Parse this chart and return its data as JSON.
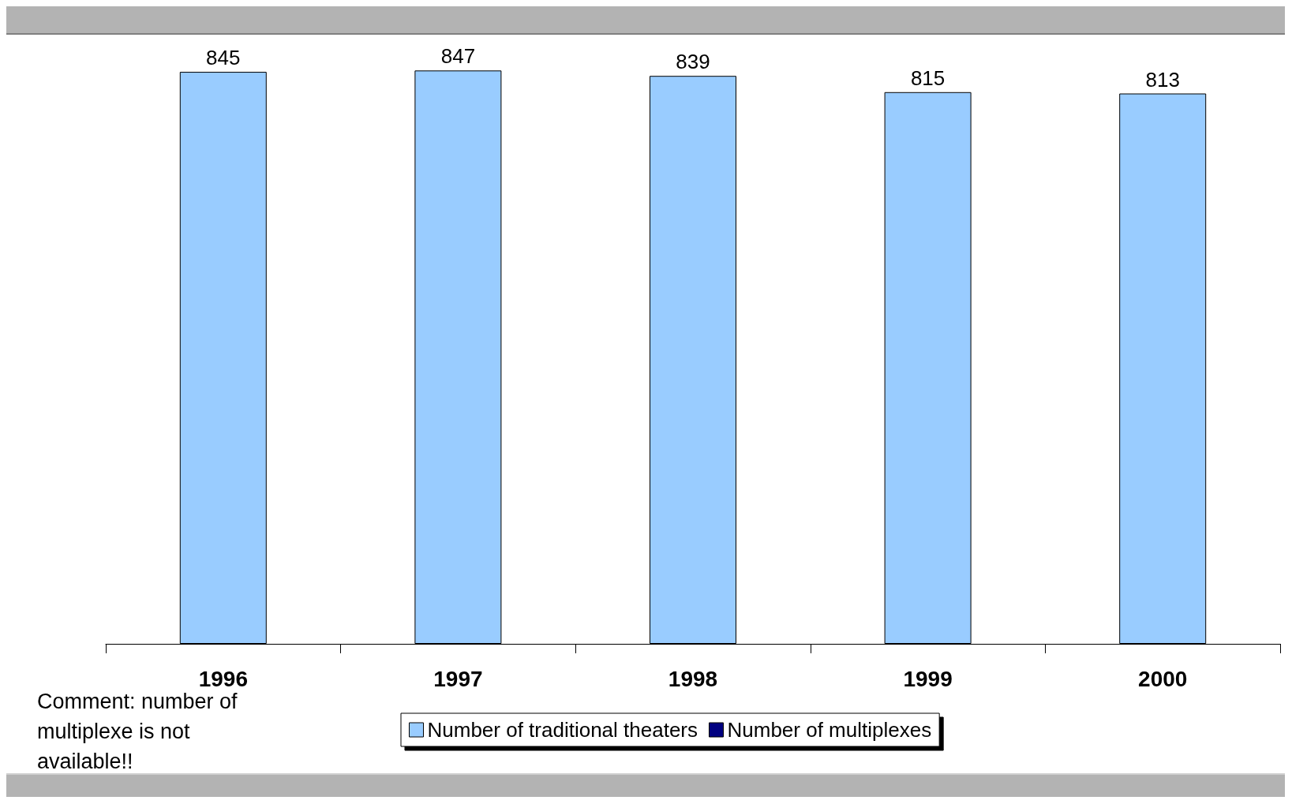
{
  "chart_data": {
    "type": "bar",
    "categories": [
      "1996",
      "1997",
      "1998",
      "1999",
      "2000"
    ],
    "series": [
      {
        "name": "Number of traditional theaters",
        "color": "#99ccff",
        "values": [
          845,
          847,
          839,
          815,
          813
        ]
      },
      {
        "name": "Number of multiplexes",
        "color": "#000080",
        "values": [
          null,
          null,
          null,
          null,
          null
        ]
      }
    ],
    "data_labels": true,
    "legend": "bottom",
    "grid": false,
    "annotations": [
      "Comment: number of multiplexe is not available!!"
    ]
  }
}
